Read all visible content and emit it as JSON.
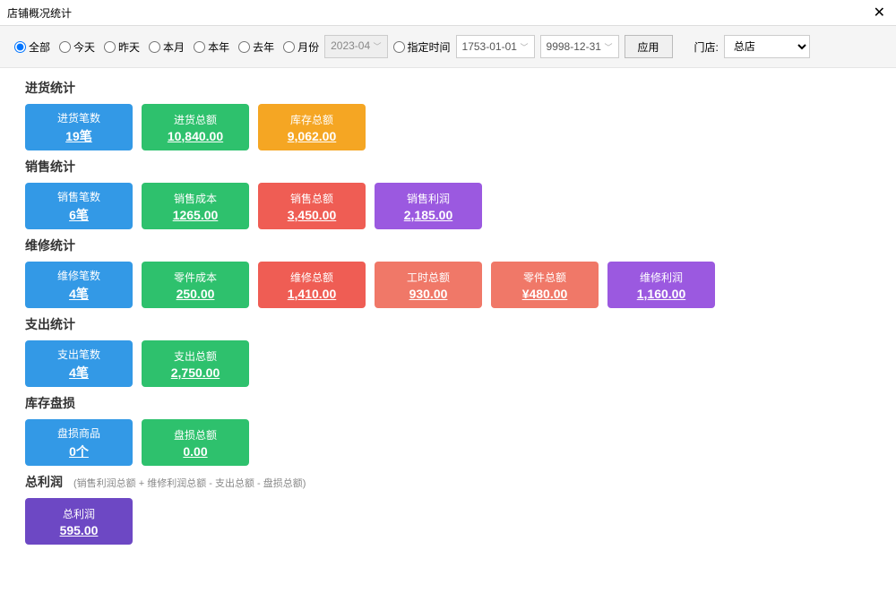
{
  "window": {
    "title": "店铺概况统计"
  },
  "filters": {
    "radios": {
      "all": "全部",
      "today": "今天",
      "yesterday": "昨天",
      "thisMonth": "本月",
      "thisYear": "本年",
      "lastYear": "去年",
      "month": "月份"
    },
    "monthValue": "2023-04",
    "customTime": "指定时间",
    "dateStart": "1753-01-01",
    "dateEnd": "9998-12-31",
    "applyLabel": "应用",
    "storeLabel": "门店:",
    "storeValue": "总店"
  },
  "colors": {
    "blue": "#3399e6",
    "green": "#2ec16d",
    "orange": "#f5a623",
    "red": "#ef5d54",
    "salmon": "#f07868",
    "purple": "#9b59e0",
    "deepPurple": "#6d48c4"
  },
  "sections": {
    "purchase": {
      "title": "进货统计",
      "cards": [
        {
          "label": "进货笔数",
          "value": "19笔",
          "color": "blue"
        },
        {
          "label": "进货总额",
          "value": "10,840.00",
          "color": "green"
        },
        {
          "label": "库存总额",
          "value": "9,062.00",
          "color": "orange"
        }
      ]
    },
    "sales": {
      "title": "销售统计",
      "cards": [
        {
          "label": "销售笔数",
          "value": "6笔",
          "color": "blue"
        },
        {
          "label": "销售成本",
          "value": "1265.00",
          "color": "green"
        },
        {
          "label": "销售总额",
          "value": "3,450.00",
          "color": "red"
        },
        {
          "label": "销售利润",
          "value": "2,185.00",
          "color": "purple"
        }
      ]
    },
    "repair": {
      "title": "维修统计",
      "cards": [
        {
          "label": "维修笔数",
          "value": "4笔",
          "color": "blue"
        },
        {
          "label": "零件成本",
          "value": "250.00",
          "color": "green"
        },
        {
          "label": "维修总额",
          "value": "1,410.00",
          "color": "red"
        },
        {
          "label": "工时总额",
          "value": "930.00",
          "color": "salmon"
        },
        {
          "label": "零件总额",
          "value": "¥480.00",
          "color": "salmon"
        },
        {
          "label": "维修利润",
          "value": "1,160.00",
          "color": "purple"
        }
      ]
    },
    "expense": {
      "title": "支出统计",
      "cards": [
        {
          "label": "支出笔数",
          "value": "4笔",
          "color": "blue"
        },
        {
          "label": "支出总额",
          "value": "2,750.00",
          "color": "green"
        }
      ]
    },
    "loss": {
      "title": "库存盘损",
      "cards": [
        {
          "label": "盘损商品",
          "value": "0个",
          "color": "blue"
        },
        {
          "label": "盘损总额",
          "value": "0.00",
          "color": "green"
        }
      ]
    },
    "profit": {
      "title": "总利润",
      "note": "(销售利润总额 + 维修利润总额 - 支出总额 - 盘损总额)",
      "cards": [
        {
          "label": "总利润",
          "value": "595.00",
          "color": "deepPurple"
        }
      ]
    }
  }
}
